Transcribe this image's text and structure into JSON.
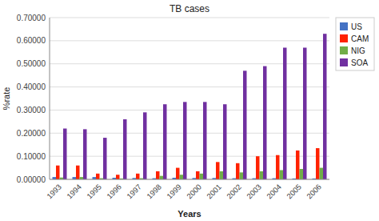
{
  "chart_data": {
    "type": "bar",
    "title": "TB cases",
    "xlabel": "Years",
    "ylabel": "%rate",
    "categories": [
      "1993",
      "1994",
      "1995",
      "1996",
      "1997",
      "1998",
      "1999",
      "2000",
      "2001",
      "2002",
      "2003",
      "2004",
      "2005",
      "2006"
    ],
    "series": [
      {
        "name": "US",
        "color": "#4472C4",
        "values": [
          0.01,
          0.01,
          0.01,
          0.007,
          0.006,
          0.005,
          0.007,
          0.006,
          0.006,
          0.005,
          0.005,
          0.005,
          0.004,
          0.004
        ]
      },
      {
        "name": "CAM",
        "color": "#FF2200",
        "values": [
          0.06,
          0.06,
          0.025,
          0.02,
          0.025,
          0.035,
          0.05,
          0.035,
          0.075,
          0.07,
          0.1,
          0.105,
          0.125,
          0.135
        ]
      },
      {
        "name": "NIG",
        "color": "#70AD47",
        "values": [
          0.008,
          0.01,
          0.005,
          0.004,
          0.005,
          0.015,
          0.02,
          0.025,
          0.035,
          0.03,
          0.035,
          0.04,
          0.045,
          0.05
        ]
      },
      {
        "name": "SOA",
        "color": "#7030A0",
        "values": [
          0.22,
          0.217,
          0.18,
          0.26,
          0.29,
          0.325,
          0.335,
          0.335,
          0.325,
          0.47,
          0.49,
          0.57,
          0.57,
          0.63
        ]
      }
    ],
    "ylim": [
      0,
      0.7
    ],
    "yticks": [
      {
        "value": 0,
        "label": "0.00000"
      },
      {
        "value": 0.1,
        "label": "0.10000"
      },
      {
        "value": 0.2,
        "label": "0.20000"
      },
      {
        "value": 0.3,
        "label": "0.30000"
      },
      {
        "value": 0.4,
        "label": "0.40000"
      },
      {
        "value": 0.5,
        "label": "0.50000"
      },
      {
        "value": 0.6,
        "label": "0.60000"
      },
      {
        "value": 0.7,
        "label": "0.70000"
      }
    ],
    "grid": true,
    "legend": "right"
  }
}
